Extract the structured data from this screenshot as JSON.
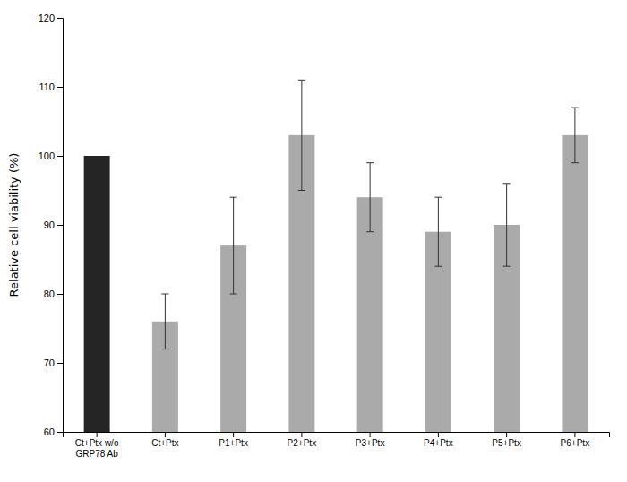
{
  "chart_data": {
    "type": "bar",
    "categories": [
      "Ct+Ptx w/o\nGRP78 Ab",
      "Ct+Ptx",
      "P1+Ptx",
      "P2+Ptx",
      "P3+Ptx",
      "P4+Ptx",
      "P5+Ptx",
      "P6+Ptx"
    ],
    "values": [
      100,
      76.0,
      87.0,
      103.0,
      94.0,
      89.0,
      90.0,
      103.0
    ],
    "errors": [
      0,
      4.0,
      7.0,
      8.0,
      5.0,
      5.0,
      6.0,
      4.0
    ],
    "colors": [
      "#252525",
      "#aaaaaa",
      "#aaaaaa",
      "#aaaaaa",
      "#aaaaaa",
      "#aaaaaa",
      "#aaaaaa",
      "#aaaaaa"
    ],
    "ylabel": "Relative cell viability (%)",
    "ylim": [
      60,
      120
    ],
    "yticks": [
      60,
      70,
      80,
      90,
      100,
      110,
      120
    ],
    "grid": false
  }
}
